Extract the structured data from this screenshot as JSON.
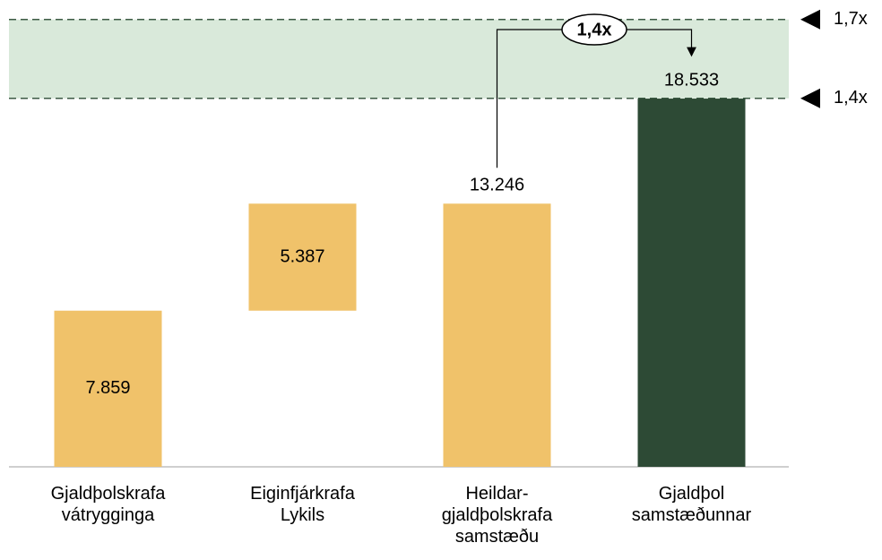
{
  "chart_data": {
    "type": "waterfall",
    "categories": [
      [
        "Gjaldþolskrafa",
        "vátrygginga"
      ],
      [
        "Eiginfjárkrafa",
        "Lykils"
      ],
      [
        "Heildar-",
        "gjaldþolskrafa",
        "samstæðu"
      ],
      [
        "Gjaldþol",
        "samstæðunnar"
      ]
    ],
    "values": [
      7859,
      5387,
      13246,
      18533
    ],
    "value_labels": [
      "7.859",
      "5.387",
      "13.246",
      "18.533"
    ],
    "measure": [
      "absolute",
      "relative",
      "total",
      "total"
    ],
    "colors": [
      "#f0c26a",
      "#f0c26a",
      "#f0c26a",
      "#2d4a35"
    ],
    "ylim": [
      0,
      23000
    ],
    "reference_lines": [
      {
        "value": 22518,
        "label": "1,7x"
      },
      {
        "value": 18544,
        "label": "1,4x"
      }
    ],
    "annotation": {
      "text": "1,4x",
      "from": 2,
      "to": 3
    }
  }
}
